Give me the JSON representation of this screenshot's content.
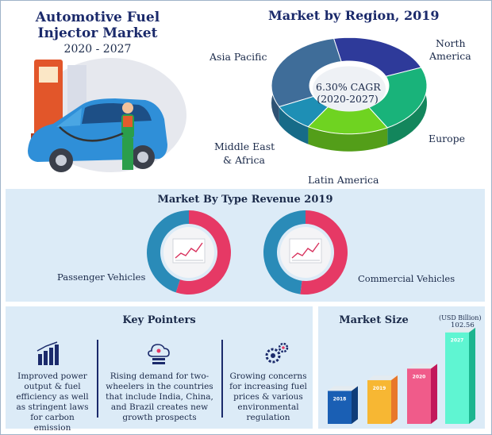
{
  "header": {
    "title_line1": "Automotive Fuel",
    "title_line2": "Injector Market",
    "period": "2020 - 2027"
  },
  "region": {
    "title": "Market by Region, 2019",
    "cagr_line1": "6.30% CAGR",
    "cagr_line2": "(2020-2027)",
    "labels": {
      "north_america_1": "North",
      "north_america_2": "America",
      "europe": "Europe",
      "latin_america": "Latin America",
      "mea_1": "Middle East",
      "mea_2": "& Africa",
      "asia_pacific": "Asia Pacific"
    }
  },
  "type_revenue": {
    "title": "Market By Type Revenue 2019",
    "passenger": "Passenger Vehicles",
    "commercial": "Commercial Vehicles"
  },
  "key_pointers": {
    "title": "Key Pointers",
    "items": [
      {
        "icon": "bar-growth-icon",
        "text": "Improved power output & fuel efficiency as well as stringent laws for carbon emission"
      },
      {
        "icon": "cloud-data-icon",
        "text": "Rising demand for two-wheelers in the countries that include India, China, and Brazil creates new growth prospects"
      },
      {
        "icon": "gears-icon",
        "text": "Growing concerns for increasing fuel prices & various environmental regulation"
      }
    ]
  },
  "market_size": {
    "title": "Market Size",
    "unit": "(USD Billion)",
    "final_value": "102.56"
  },
  "colors": {
    "title_blue": "#1b2a6b",
    "panel_bg": "#dcebf7",
    "region_north_america": "#2e3a9a",
    "region_europe": "#19b37a",
    "region_latin_america": "#6fd321",
    "region_mea": "#1e8fb5",
    "region_asia_pacific": "#3f6d99",
    "donut_red": "#e63965",
    "donut_blue": "#2a8bb8"
  },
  "chart_data": [
    {
      "type": "pie",
      "title": "Market by Region, 2019",
      "categories": [
        "North America",
        "Europe",
        "Latin America",
        "Middle East & Africa",
        "Asia Pacific"
      ],
      "values": [
        22,
        23,
        17,
        9,
        29
      ]
    },
    {
      "type": "pie",
      "title": "Market By Type Revenue 2019",
      "categories": [
        "Passenger Vehicles",
        "Commercial Vehicles"
      ],
      "series": [
        {
          "name": "Passenger Vehicles",
          "values": [
            55,
            45
          ]
        },
        {
          "name": "Commercial Vehicles",
          "values": [
            52,
            48
          ]
        }
      ]
    },
    {
      "type": "bar",
      "title": "Market Size",
      "ylabel": "(USD Billion)",
      "categories": [
        "2018",
        "2019",
        "2020",
        "2027"
      ],
      "values": [
        37,
        49,
        62,
        102.56
      ]
    }
  ]
}
